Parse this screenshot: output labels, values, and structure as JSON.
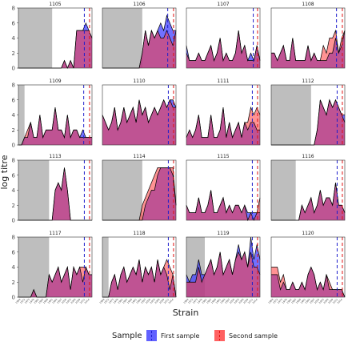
{
  "chart_data": {
    "type": "area",
    "xlabel": "Strain",
    "ylabel": "log titre",
    "ylim": [
      0,
      8
    ],
    "yticks": [
      0,
      2,
      4,
      6,
      8
    ],
    "x_tick_labels": [
      "1968",
      "1972",
      "1975",
      "1979",
      "1982",
      "1985",
      "1988",
      "1991",
      "1994",
      "1997",
      "2000",
      "2003",
      "2006",
      "2009",
      "2012",
      "2014"
    ],
    "legend": {
      "title": "Sample",
      "position": "bottom",
      "entries": [
        {
          "label": "First sample",
          "color": "#3a3aff"
        },
        {
          "label": "Second sample",
          "color": "#ff3a3a"
        }
      ]
    },
    "colors": {
      "first_fill": "#3a3aff",
      "second_fill": "#ff3a3a",
      "first_line": "#1f1fcc",
      "second_line": "#e01010",
      "grey_band": "#bebebe",
      "outline": "#000000"
    },
    "x_domain": [
      0,
      24
    ],
    "panels": [
      {
        "id": "1105",
        "grey_end": 11,
        "first_line_x": 21.5,
        "second_line_x": 23.2,
        "first": [
          0,
          0,
          0,
          0,
          0,
          0,
          0,
          0,
          0,
          0,
          0,
          0,
          0,
          0,
          0,
          1,
          0,
          1,
          0,
          5,
          5,
          5,
          6,
          5,
          4
        ],
        "second": [
          0,
          0,
          0,
          0,
          0,
          0,
          0,
          0,
          0,
          0,
          0,
          0,
          0,
          0,
          0,
          1,
          0,
          1,
          0,
          5,
          5,
          5,
          5,
          5,
          4
        ]
      },
      {
        "id": "1106",
        "grey_end": 13,
        "first_line_x": 21.3,
        "second_line_x": 23.2,
        "first": [
          0,
          0,
          0,
          0,
          0,
          0,
          0,
          0,
          0,
          0,
          0,
          0,
          0,
          2,
          5,
          3,
          5,
          4,
          5,
          6,
          5,
          7,
          6,
          5,
          5
        ],
        "second": [
          0,
          0,
          0,
          0,
          0,
          0,
          0,
          0,
          0,
          0,
          0,
          0,
          0,
          2,
          5,
          3,
          5,
          4,
          5,
          4,
          4,
          5,
          4,
          3,
          5
        ]
      },
      {
        "id": "1107",
        "grey_end": 0,
        "first_line_x": 21.8,
        "second_line_x": 23.2,
        "first": [
          3,
          1,
          1,
          1,
          2,
          1,
          1,
          2,
          3,
          1,
          2,
          4,
          1,
          2,
          1,
          1,
          2,
          5,
          2,
          3,
          1,
          2,
          1,
          3,
          1
        ],
        "second": [
          2,
          1,
          1,
          1,
          2,
          1,
          1,
          2,
          3,
          1,
          2,
          4,
          1,
          2,
          1,
          1,
          2,
          5,
          2,
          3,
          1,
          1,
          1,
          3,
          1
        ]
      },
      {
        "id": "1108",
        "grey_end": 0,
        "first_line_x": 21.3,
        "second_line_x": 23.2,
        "first": [
          2,
          2,
          1,
          2,
          3,
          1,
          1,
          4,
          1,
          1,
          1,
          1,
          3,
          1,
          2,
          1,
          1,
          1,
          1,
          2,
          2,
          4,
          2,
          3,
          5
        ],
        "second": [
          2,
          2,
          1,
          2,
          3,
          1,
          1,
          4,
          1,
          1,
          1,
          1,
          3,
          1,
          2,
          1,
          1,
          3,
          2,
          4,
          4,
          5,
          2,
          4,
          5
        ]
      },
      {
        "id": "1109",
        "grey_end": 2,
        "first_line_x": 21.3,
        "second_line_x": 23.2,
        "first": [
          0,
          0,
          1,
          1,
          3,
          1,
          1,
          4,
          1,
          2,
          2,
          2,
          5,
          2,
          2,
          1,
          4,
          1,
          2,
          2,
          1,
          2,
          1,
          1,
          1
        ],
        "second": [
          0,
          0,
          1,
          2,
          3,
          1,
          1,
          4,
          1,
          2,
          2,
          2,
          5,
          2,
          2,
          1,
          4,
          1,
          2,
          2,
          1,
          1,
          1,
          1,
          1
        ]
      },
      {
        "id": "1110",
        "grey_end": 0,
        "first_line_x": 21.5,
        "second_line_x": 23.2,
        "first": [
          4,
          3,
          2,
          3,
          5,
          2,
          3,
          5,
          3,
          4,
          5,
          3,
          6,
          4,
          5,
          3,
          4,
          5,
          4,
          5,
          6,
          5,
          6,
          6,
          5
        ],
        "second": [
          4,
          3,
          2,
          3,
          5,
          2,
          3,
          5,
          3,
          4,
          5,
          3,
          6,
          4,
          5,
          3,
          4,
          5,
          4,
          5,
          6,
          5,
          6,
          5,
          5
        ]
      },
      {
        "id": "1111",
        "grey_end": 0,
        "first_line_x": 21.5,
        "second_line_x": 23.2,
        "first": [
          1,
          2,
          1,
          2,
          4,
          1,
          1,
          1,
          4,
          1,
          1,
          2,
          5,
          1,
          3,
          1,
          2,
          3,
          1,
          3,
          2,
          3,
          3,
          2,
          2
        ],
        "second": [
          1,
          2,
          1,
          2,
          4,
          1,
          1,
          1,
          4,
          1,
          1,
          2,
          5,
          1,
          3,
          1,
          2,
          3,
          1,
          3,
          3,
          5,
          4,
          5,
          4
        ]
      },
      {
        "id": "1112",
        "grey_end": 13,
        "first_line_x": 21.5,
        "second_line_x": 23.2,
        "first": [
          0,
          0,
          0,
          0,
          0,
          0,
          0,
          0,
          0,
          0,
          0,
          0,
          0,
          0,
          0,
          2,
          6,
          5,
          4,
          6,
          5,
          6,
          5,
          4,
          4
        ],
        "second": [
          0,
          0,
          0,
          0,
          0,
          0,
          0,
          0,
          0,
          0,
          0,
          0,
          0,
          0,
          0,
          2,
          6,
          5,
          4,
          6,
          5,
          6,
          5,
          4,
          3
        ]
      },
      {
        "id": "1113",
        "grey_end": 10,
        "first_line_x": 21.5,
        "second_line_x": 23.2,
        "first": [
          0,
          0,
          0,
          0,
          0,
          0,
          0,
          0,
          0,
          0,
          0,
          0,
          4,
          5,
          4,
          7,
          4,
          0,
          0,
          0,
          0,
          0,
          0,
          0,
          0
        ],
        "second": [
          0,
          0,
          0,
          0,
          0,
          0,
          0,
          0,
          0,
          0,
          0,
          0,
          4,
          5,
          4,
          7,
          4,
          0,
          0,
          0,
          0,
          0,
          0,
          0,
          0
        ]
      },
      {
        "id": "1114",
        "grey_end": 13,
        "first_line_x": 21.5,
        "second_line_x": 23.2,
        "first": [
          0,
          0,
          0,
          0,
          0,
          0,
          0,
          0,
          0,
          0,
          0,
          0,
          0,
          0,
          2,
          3,
          4,
          4,
          6,
          7,
          7,
          7,
          7,
          6,
          2
        ],
        "second": [
          0,
          0,
          0,
          0,
          0,
          0,
          0,
          0,
          0,
          0,
          0,
          0,
          0,
          2,
          3,
          4,
          5,
          6,
          7,
          7,
          7,
          7,
          7,
          7,
          2
        ]
      },
      {
        "id": "1115",
        "grey_end": 0,
        "first_line_x": 21.5,
        "second_line_x": 23.2,
        "first": [
          2,
          1,
          1,
          1,
          3,
          1,
          1,
          2,
          4,
          1,
          1,
          2,
          3,
          1,
          2,
          1,
          2,
          2,
          1,
          2,
          1,
          1,
          1,
          1,
          1
        ],
        "second": [
          2,
          1,
          1,
          1,
          3,
          1,
          1,
          2,
          4,
          1,
          1,
          2,
          3,
          1,
          2,
          1,
          2,
          2,
          1,
          2,
          0,
          1,
          0,
          1,
          3
        ]
      },
      {
        "id": "1116",
        "grey_end": 8,
        "first_line_x": 21.5,
        "second_line_x": 23.2,
        "first": [
          0,
          0,
          0,
          0,
          0,
          0,
          0,
          0,
          0,
          0,
          2,
          1,
          2,
          3,
          1,
          2,
          4,
          2,
          3,
          3,
          2,
          5,
          2,
          2,
          1
        ],
        "second": [
          0,
          0,
          0,
          0,
          0,
          0,
          0,
          0,
          0,
          0,
          2,
          1,
          2,
          3,
          1,
          2,
          4,
          2,
          3,
          3,
          2,
          5,
          2,
          2,
          1
        ]
      },
      {
        "id": "1117",
        "grey_end": 10,
        "first_line_x": 21.5,
        "second_line_x": 23.2,
        "first": [
          0,
          0,
          0,
          0,
          0,
          1,
          0,
          0,
          0,
          0,
          3,
          2,
          3,
          4,
          2,
          3,
          4,
          1,
          4,
          3,
          4,
          2,
          4,
          3,
          3
        ],
        "second": [
          0,
          0,
          0,
          0,
          0,
          1,
          0,
          0,
          0,
          0,
          3,
          2,
          3,
          4,
          2,
          3,
          4,
          1,
          4,
          3,
          4,
          4,
          4,
          3,
          3
        ]
      },
      {
        "id": "1118",
        "grey_end": 2,
        "first_line_x": 21.5,
        "second_line_x": 23.2,
        "first": [
          0,
          0,
          0,
          2,
          3,
          1,
          3,
          4,
          2,
          3,
          4,
          3,
          5,
          2,
          4,
          3,
          4,
          2,
          5,
          3,
          4,
          3,
          1,
          3,
          0
        ],
        "second": [
          0,
          0,
          0,
          2,
          3,
          1,
          3,
          4,
          2,
          3,
          4,
          3,
          5,
          2,
          4,
          3,
          4,
          2,
          5,
          3,
          4,
          5,
          4,
          3,
          0
        ]
      },
      {
        "id": "1119",
        "grey_end": 6,
        "first_line_x": 21.5,
        "second_line_x": 23.2,
        "first": [
          3,
          2,
          3,
          3,
          5,
          3,
          3,
          4,
          5,
          3,
          4,
          6,
          3,
          4,
          5,
          3,
          5,
          7,
          5,
          6,
          4,
          8,
          5,
          7,
          5
        ],
        "second": [
          2,
          2,
          2,
          2,
          4,
          2,
          3,
          4,
          5,
          3,
          4,
          6,
          3,
          4,
          5,
          3,
          5,
          6,
          5,
          6,
          4,
          6,
          4,
          4,
          3
        ]
      },
      {
        "id": "1120",
        "grey_end": 0,
        "first_line_x": 21.5,
        "second_line_x": 23.2,
        "first": [
          3,
          3,
          3,
          1,
          2,
          1,
          1,
          2,
          1,
          1,
          2,
          1,
          3,
          4,
          3,
          1,
          2,
          1,
          3,
          1,
          1,
          1,
          1,
          1,
          0
        ],
        "second": [
          4,
          4,
          4,
          2,
          3,
          1,
          1,
          2,
          1,
          1,
          2,
          1,
          3,
          4,
          3,
          1,
          2,
          1,
          3,
          2,
          1,
          1,
          1,
          1,
          0
        ]
      }
    ]
  }
}
